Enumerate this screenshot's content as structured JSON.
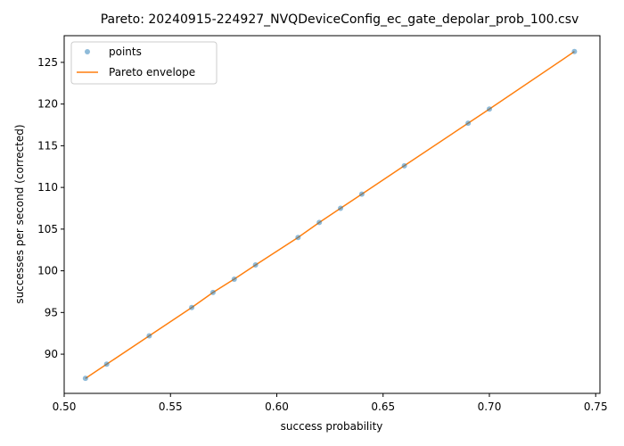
{
  "chart_data": {
    "type": "scatter",
    "title": "Pareto: 20240915-224927_NVQDeviceConfig_ec_gate_depolar_prob_100.csv",
    "xlabel": "success probability",
    "ylabel": "successes per second (corrected)",
    "xlim": [
      0.5,
      0.752
    ],
    "ylim": [
      85.3,
      128.2
    ],
    "x_ticks": [
      0.5,
      0.55,
      0.6,
      0.65,
      0.7,
      0.75
    ],
    "x_tick_labels": [
      "0.50",
      "0.55",
      "0.60",
      "0.65",
      "0.70",
      "0.75"
    ],
    "y_ticks": [
      90,
      95,
      100,
      105,
      110,
      115,
      120,
      125
    ],
    "y_tick_labels": [
      "90",
      "95",
      "100",
      "105",
      "110",
      "115",
      "120",
      "125"
    ],
    "grid": false,
    "legend_position": "top-left",
    "series": [
      {
        "name": "points",
        "kind": "scatter",
        "color": "#1f77b4",
        "x": [
          0.51,
          0.52,
          0.54,
          0.56,
          0.57,
          0.58,
          0.59,
          0.61,
          0.62,
          0.63,
          0.64,
          0.66,
          0.69,
          0.7,
          0.74
        ],
        "y": [
          87.1,
          88.8,
          92.2,
          95.6,
          97.4,
          99.0,
          100.7,
          104.0,
          105.8,
          107.5,
          109.2,
          112.6,
          117.7,
          119.4,
          126.3
        ]
      },
      {
        "name": "Pareto envelope",
        "kind": "line",
        "color": "#ff7f0e",
        "x": [
          0.51,
          0.52,
          0.54,
          0.56,
          0.57,
          0.58,
          0.59,
          0.61,
          0.62,
          0.63,
          0.64,
          0.66,
          0.69,
          0.7,
          0.74
        ],
        "y": [
          87.1,
          88.8,
          92.2,
          95.6,
          97.4,
          99.0,
          100.7,
          104.0,
          105.8,
          107.5,
          109.2,
          112.6,
          117.7,
          119.4,
          126.3
        ]
      }
    ]
  }
}
